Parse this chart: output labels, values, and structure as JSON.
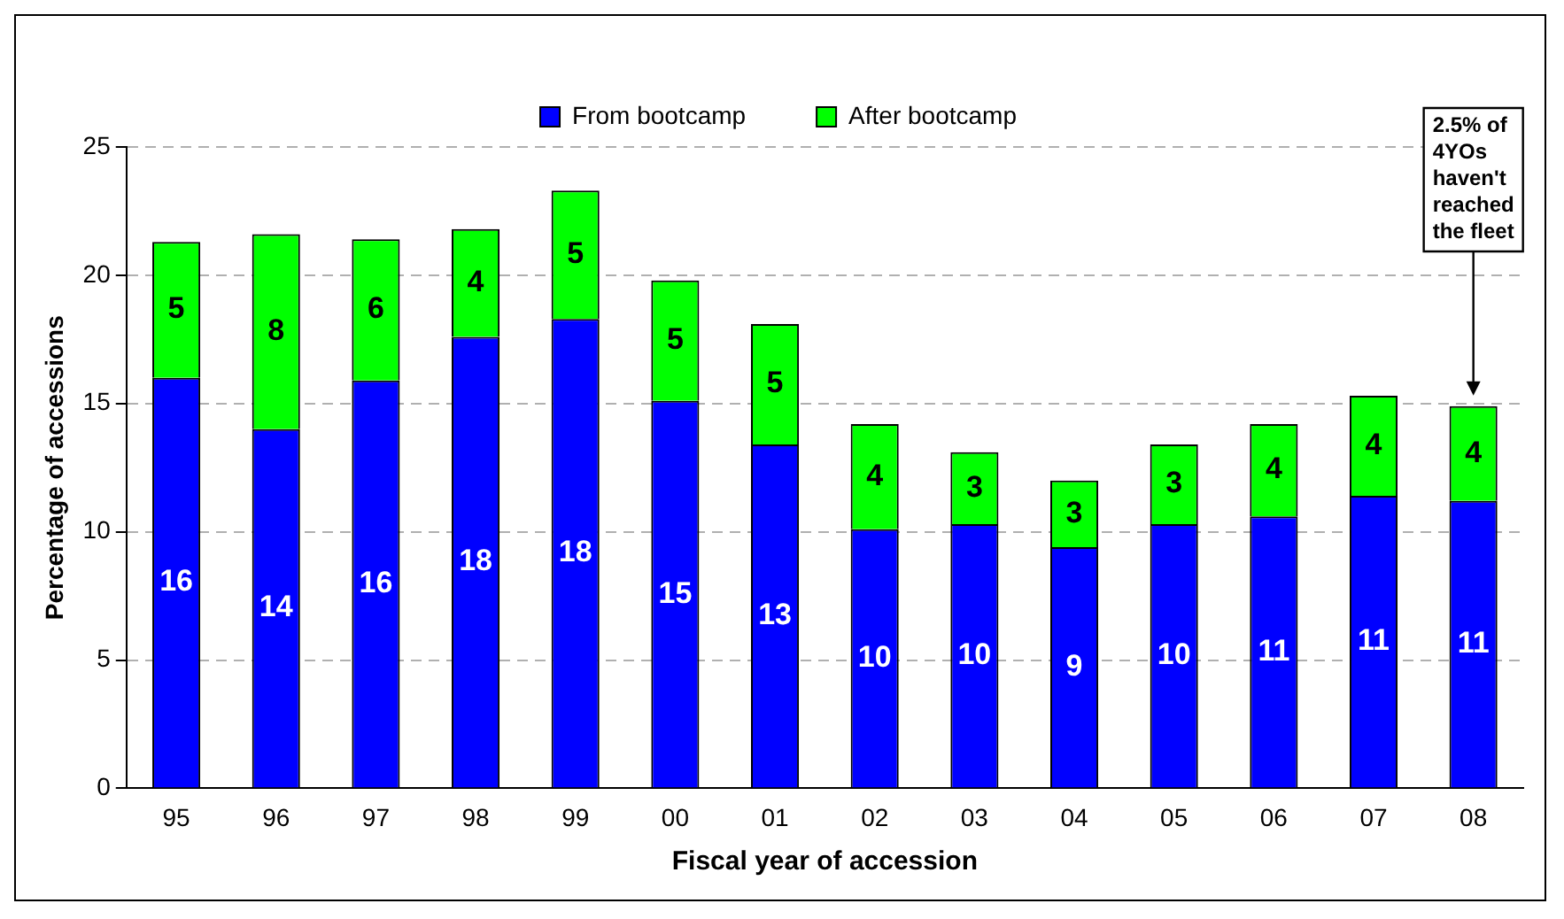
{
  "chart_data": {
    "type": "bar",
    "stacked": true,
    "xlabel": "Fiscal year of accession",
    "ylabel": "Percentage of accessions",
    "categories": [
      "95",
      "96",
      "97",
      "98",
      "99",
      "00",
      "01",
      "02",
      "03",
      "04",
      "05",
      "06",
      "07",
      "08"
    ],
    "series": [
      {
        "name": "From bootcamp",
        "color": "#0000ff",
        "values": [
          16.0,
          14.0,
          15.9,
          17.6,
          18.3,
          15.1,
          13.4,
          10.1,
          10.3,
          9.4,
          10.3,
          10.6,
          11.4,
          11.2
        ],
        "value_labels": [
          "16",
          "14",
          "16",
          "18",
          "18",
          "15",
          "13",
          "10",
          "10",
          "9",
          "10",
          "11",
          "11",
          "11"
        ]
      },
      {
        "name": "After bootcamp",
        "color": "#00ff00",
        "values": [
          5.3,
          7.6,
          5.5,
          4.2,
          5.0,
          4.7,
          4.7,
          4.1,
          2.8,
          2.6,
          3.1,
          3.6,
          3.9,
          3.7
        ],
        "value_labels": [
          "5",
          "8",
          "6",
          "4",
          "5",
          "5",
          "5",
          "4",
          "3",
          "3",
          "3",
          "4",
          "4",
          "4"
        ]
      }
    ],
    "ylim": [
      0,
      25
    ],
    "yticks": [
      0,
      5,
      10,
      15,
      20,
      25
    ],
    "grid": "y",
    "legend": "top",
    "annotations": [
      "2.5% of 4YOs haven't reached the fleet"
    ]
  }
}
